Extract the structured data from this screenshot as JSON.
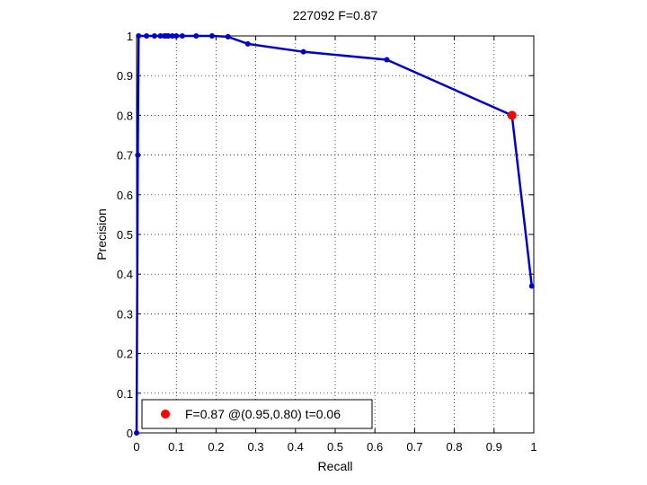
{
  "chart_data": {
    "type": "line",
    "title": "227092 F=0.87",
    "xlabel": "Recall",
    "ylabel": "Precision",
    "xlim": [
      0,
      1
    ],
    "ylim": [
      0,
      1
    ],
    "grid": true,
    "legend_position": "bottom-left",
    "x_ticks": [
      "0",
      "0.1",
      "0.2",
      "0.3",
      "0.4",
      "0.5",
      "0.6",
      "0.7",
      "0.8",
      "0.9",
      "1"
    ],
    "y_ticks": [
      "0",
      "0.1",
      "0.2",
      "0.3",
      "0.4",
      "0.5",
      "0.6",
      "0.7",
      "0.8",
      "0.9",
      "1"
    ],
    "series": [
      {
        "color": "#0000cc",
        "points": [
          [
            0.0,
            0.0
          ],
          [
            0.003,
            0.7
          ],
          [
            0.005,
            1.0
          ],
          [
            0.025,
            1.0
          ],
          [
            0.045,
            1.0
          ],
          [
            0.06,
            1.0
          ],
          [
            0.07,
            1.0
          ],
          [
            0.075,
            1.0
          ],
          [
            0.08,
            1.0
          ],
          [
            0.09,
            1.0
          ],
          [
            0.1,
            1.0
          ],
          [
            0.115,
            1.0
          ],
          [
            0.15,
            1.0
          ],
          [
            0.19,
            1.0
          ],
          [
            0.23,
            0.998
          ],
          [
            0.28,
            0.98
          ],
          [
            0.42,
            0.96
          ],
          [
            0.63,
            0.94
          ],
          [
            0.945,
            0.8
          ],
          [
            0.995,
            0.37
          ]
        ]
      }
    ],
    "highlight": {
      "x": 0.945,
      "y": 0.8,
      "color": "#ff0000"
    },
    "legend": {
      "label": "F=0.87 @(0.95,0.80) t=0.06",
      "marker_color": "#ff0000"
    }
  }
}
